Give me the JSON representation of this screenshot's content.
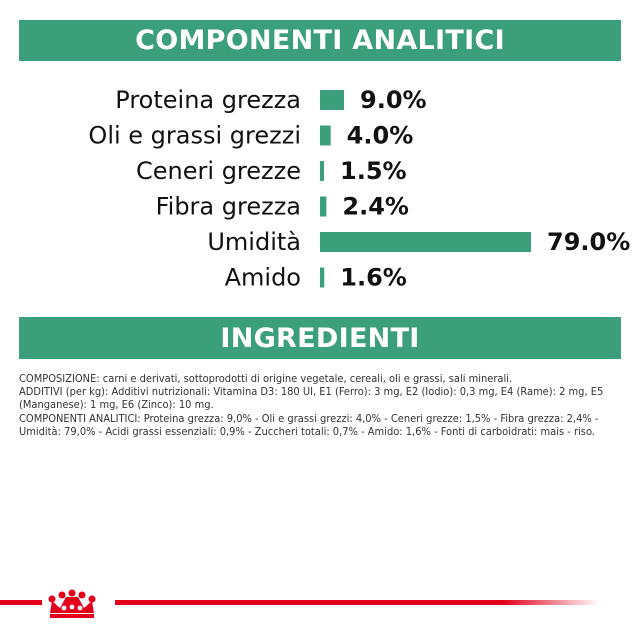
{
  "analytic": {
    "title": "COMPONENTI ANALITICI"
  },
  "chart_data": {
    "type": "bar",
    "orientation": "horizontal",
    "categories": [
      "Proteina grezza",
      "Oli e grassi grezzi",
      "Ceneri grezze",
      "Fibra grezza",
      "Umidità",
      "Amido"
    ],
    "values": [
      9.0,
      4.0,
      1.5,
      2.4,
      79.0,
      1.6
    ],
    "value_labels": [
      "9.0%",
      "4.0%",
      "1.5%",
      "2.4%",
      "79.0%",
      "1.6%"
    ],
    "xlim": [
      0,
      79.0
    ],
    "grid": false,
    "colors": {
      "bar": "#3b9f7c"
    }
  },
  "ingredients": {
    "title": "INGREDIENTI",
    "composition": "COMPOSIZIONE: carni e derivati, sottoprodotti di origine vegetale, cereali, oli e grassi, sali minerali.",
    "additives": "ADDITIVI (per kg): Additivi nutrizionali: Vitamina D3: 180 UI, E1 (Ferro): 3 mg, E2 (Iodio): 0,3 mg, E4 (Rame): 2 mg, E5 (Manganese): 1 mg, E6 (Zinco): 10 mg.",
    "analytic_text": "COMPONENTI ANALITICI: Proteina grezza: 9,0% - Oli e grassi grezzi: 4,0% - Ceneri grezze: 1,5% - Fibra grezza: 2,4% - Umidità: 79,0% - Acidi grassi essenziali: 0,9% - Zuccheri totali: 0,7% - Amido: 1,6% - Fonti di carboidrati: mais - riso."
  },
  "footer": {
    "logo_icon": "crown-icon",
    "stripe_color": "#e2001a"
  }
}
